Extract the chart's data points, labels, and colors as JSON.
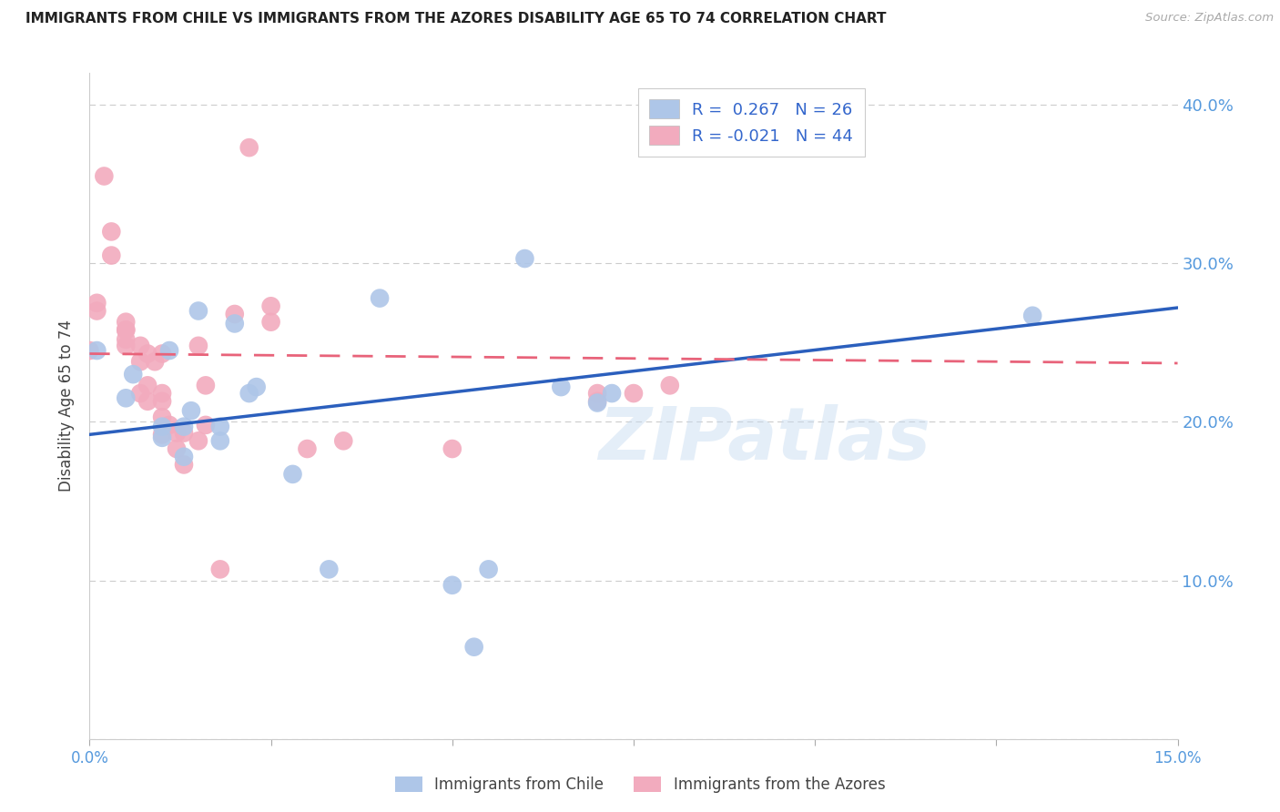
{
  "title": "IMMIGRANTS FROM CHILE VS IMMIGRANTS FROM THE AZORES DISABILITY AGE 65 TO 74 CORRELATION CHART",
  "source": "Source: ZipAtlas.com",
  "ylabel": "Disability Age 65 to 74",
  "xlim": [
    0.0,
    0.15
  ],
  "ylim": [
    0.0,
    0.42
  ],
  "yticks": [
    0.0,
    0.1,
    0.2,
    0.3,
    0.4
  ],
  "ytick_labels": [
    "",
    "10.0%",
    "20.0%",
    "30.0%",
    "40.0%"
  ],
  "xticks": [
    0.0,
    0.025,
    0.05,
    0.075,
    0.1,
    0.125,
    0.15
  ],
  "xtick_labels": [
    "0.0%",
    "",
    "",
    "",
    "",
    "",
    "15.0%"
  ],
  "legend_r_chile": "R =  0.267",
  "legend_n_chile": "N = 26",
  "legend_r_azores": "R = -0.021",
  "legend_n_azores": "N = 44",
  "chile_color": "#aec6e8",
  "azores_color": "#f2abbe",
  "chile_line_color": "#2b5fbd",
  "azores_line_color": "#e8637a",
  "watermark": "ZIPatlas",
  "chile_points_x": [
    0.001,
    0.005,
    0.006,
    0.01,
    0.01,
    0.011,
    0.013,
    0.013,
    0.014,
    0.015,
    0.018,
    0.018,
    0.02,
    0.022,
    0.023,
    0.028,
    0.033,
    0.04,
    0.05,
    0.053,
    0.055,
    0.06,
    0.065,
    0.07,
    0.072,
    0.13
  ],
  "chile_points_y": [
    0.245,
    0.215,
    0.23,
    0.19,
    0.197,
    0.245,
    0.178,
    0.197,
    0.207,
    0.27,
    0.188,
    0.197,
    0.262,
    0.218,
    0.222,
    0.167,
    0.107,
    0.278,
    0.097,
    0.058,
    0.107,
    0.303,
    0.222,
    0.212,
    0.218,
    0.267
  ],
  "azores_points_x": [
    0.0,
    0.001,
    0.001,
    0.002,
    0.003,
    0.003,
    0.005,
    0.005,
    0.005,
    0.005,
    0.005,
    0.007,
    0.007,
    0.007,
    0.008,
    0.008,
    0.008,
    0.009,
    0.01,
    0.01,
    0.01,
    0.01,
    0.01,
    0.011,
    0.012,
    0.012,
    0.013,
    0.013,
    0.015,
    0.015,
    0.016,
    0.016,
    0.018,
    0.02,
    0.022,
    0.025,
    0.025,
    0.03,
    0.035,
    0.05,
    0.07,
    0.07,
    0.075,
    0.08
  ],
  "azores_points_y": [
    0.245,
    0.27,
    0.275,
    0.355,
    0.305,
    0.32,
    0.248,
    0.252,
    0.258,
    0.258,
    0.263,
    0.218,
    0.238,
    0.248,
    0.213,
    0.223,
    0.243,
    0.238,
    0.192,
    0.203,
    0.213,
    0.218,
    0.243,
    0.198,
    0.183,
    0.193,
    0.173,
    0.193,
    0.188,
    0.248,
    0.198,
    0.223,
    0.107,
    0.268,
    0.373,
    0.263,
    0.273,
    0.183,
    0.188,
    0.183,
    0.213,
    0.218,
    0.218,
    0.223
  ],
  "chile_line_x": [
    0.0,
    0.15
  ],
  "chile_line_y": [
    0.192,
    0.272
  ],
  "azores_line_x": [
    0.0,
    0.15
  ],
  "azores_line_y": [
    0.243,
    0.237
  ],
  "grid_color": "#cccccc",
  "axis_label_color": "#5599dd",
  "legend_text_color": "#333333",
  "legend_value_color": "#3366cc",
  "background_color": "#ffffff"
}
